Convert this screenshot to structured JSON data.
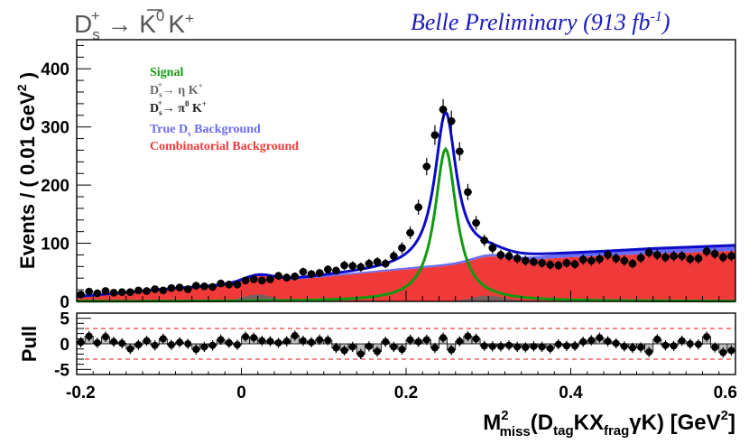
{
  "chart_data": [
    {
      "type": "line",
      "decay_title": {
        "parts": [
          "D",
          "s",
          "+",
          " → ",
          "K",
          "0",
          "K",
          "+"
        ]
      },
      "experiment_label": {
        "main": "Belle Preliminary (913 fb",
        "sup": "-1",
        "close": ")"
      },
      "ylabel": {
        "main": "Events / ( 0.01 GeV",
        "sup": "2",
        "close": " )"
      },
      "xlim": [
        -0.2,
        0.6
      ],
      "ylim": [
        0,
        450
      ],
      "x_ticks": [
        "-0.2",
        "0",
        "0.2",
        "0.4",
        "0.6"
      ],
      "y_ticks": [
        "0",
        "100",
        "200",
        "300",
        "400"
      ],
      "legend": [
        {
          "key": "signal",
          "label": "Signal",
          "color": "#119911"
        },
        {
          "key": "eta",
          "parts": [
            "D",
            "s",
            "+",
            "→ η K",
            "+"
          ],
          "color": "#666666"
        },
        {
          "key": "pi0",
          "parts": [
            "D",
            "s",
            "+",
            "→ π",
            "0",
            " K",
            "+"
          ],
          "color": "#222222"
        },
        {
          "key": "trueds",
          "label": "True D",
          "sub": "s",
          "rest": " Background",
          "color": "#6b6bf2"
        },
        {
          "key": "comb",
          "label": "Combinatorial Background",
          "color": "#f03a3a"
        }
      ],
      "components": {
        "total_color": "#0a0ac8",
        "signal": {
          "mean": 0.248,
          "sigma": 0.017,
          "peak": 262
        },
        "combinatorial": {
          "points": [
            [
              -0.2,
              8
            ],
            [
              -0.1,
              20
            ],
            [
              0.0,
              30
            ],
            [
              0.1,
              42
            ],
            [
              0.2,
              55
            ],
            [
              0.3,
              67
            ],
            [
              0.4,
              76
            ],
            [
              0.5,
              82
            ],
            [
              0.6,
              87
            ]
          ]
        },
        "true_ds": {
          "points": [
            [
              -0.2,
              0
            ],
            [
              0.0,
              0
            ],
            [
              0.1,
              1
            ],
            [
              0.2,
              2
            ],
            [
              0.3,
              3
            ],
            [
              0.4,
              5
            ],
            [
              0.5,
              8
            ],
            [
              0.6,
              9
            ]
          ]
        },
        "eta_peaks": [
          {
            "mean": 0.02,
            "sigma": 0.018,
            "height": 12
          },
          {
            "mean": 0.3,
            "sigma": 0.02,
            "height": 10
          }
        ]
      },
      "points": {
        "x": [
          -0.195,
          -0.185,
          -0.175,
          -0.165,
          -0.155,
          -0.145,
          -0.135,
          -0.125,
          -0.115,
          -0.105,
          -0.095,
          -0.085,
          -0.075,
          -0.065,
          -0.055,
          -0.045,
          -0.035,
          -0.025,
          -0.015,
          -0.005,
          0.005,
          0.015,
          0.025,
          0.035,
          0.045,
          0.055,
          0.065,
          0.075,
          0.085,
          0.095,
          0.105,
          0.115,
          0.125,
          0.135,
          0.145,
          0.155,
          0.165,
          0.175,
          0.185,
          0.195,
          0.205,
          0.215,
          0.225,
          0.235,
          0.245,
          0.255,
          0.265,
          0.275,
          0.285,
          0.295,
          0.305,
          0.315,
          0.325,
          0.335,
          0.345,
          0.355,
          0.365,
          0.375,
          0.385,
          0.395,
          0.405,
          0.415,
          0.425,
          0.435,
          0.445,
          0.455,
          0.465,
          0.475,
          0.485,
          0.495,
          0.505,
          0.515,
          0.525,
          0.535,
          0.545,
          0.555,
          0.565,
          0.575,
          0.585,
          0.595
        ],
        "y": [
          12,
          17,
          14,
          18,
          15,
          16,
          16,
          19,
          18,
          21,
          19,
          23,
          24,
          21,
          27,
          26,
          25,
          31,
          29,
          29,
          36,
          38,
          36,
          38,
          44,
          41,
          43,
          51,
          47,
          49,
          55,
          53,
          62,
          61,
          59,
          65,
          68,
          65,
          78,
          92,
          118,
          162,
          232,
          286,
          330,
          310,
          258,
          188,
          135,
          105,
          92,
          80,
          78,
          74,
          70,
          68,
          66,
          63,
          62,
          66,
          64,
          72,
          70,
          73,
          80,
          74,
          70,
          65,
          75,
          84,
          80,
          76,
          78,
          78,
          73,
          74,
          86,
          82,
          76,
          78
        ],
        "err": [
          4,
          4,
          4,
          4,
          4,
          4,
          4,
          5,
          5,
          5,
          5,
          5,
          5,
          5,
          5,
          5,
          5,
          6,
          6,
          6,
          6,
          6,
          6,
          6,
          7,
          7,
          7,
          7,
          7,
          7,
          7,
          7,
          8,
          8,
          8,
          8,
          8,
          8,
          9,
          10,
          11,
          13,
          15,
          17,
          18,
          18,
          16,
          14,
          12,
          10,
          10,
          9,
          9,
          9,
          9,
          8,
          8,
          8,
          8,
          8,
          8,
          9,
          9,
          9,
          9,
          9,
          9,
          8,
          9,
          9,
          9,
          9,
          9,
          9,
          9,
          9,
          9,
          9,
          9,
          9
        ]
      }
    },
    {
      "type": "bar",
      "ylabel": "Pull",
      "ylim": [
        -6,
        6
      ],
      "y_ticks": [
        "-5",
        "0",
        "5"
      ],
      "reference_lines": [
        3,
        -3
      ],
      "xlabel": {
        "m": "M",
        "sup": "2",
        "sub": "miss",
        "open": "(D",
        "tag": "tag",
        "kx": "KX",
        "frag": "frag",
        "gk": "γK) [GeV",
        "sup2": "2",
        "close": "]"
      },
      "pulls": [
        0.3,
        1.5,
        0.2,
        1.4,
        0.4,
        0.1,
        -1.0,
        -0.2,
        0.6,
        -0.3,
        1.0,
        -0.2,
        0.3,
        0.0,
        -1.1,
        -0.6,
        -0.3,
        0.8,
        0.2,
        -0.2,
        1.4,
        1.2,
        0.6,
        0.5,
        0.2,
        0.5,
        1.6,
        0.6,
        0.3,
        0.8,
        0.7,
        -0.8,
        -1.3,
        -0.6,
        -2.0,
        -0.5,
        -1.5,
        0.4,
        -0.6,
        -1.1,
        0.8,
        0.4,
        0.8,
        -0.8,
        1.2,
        -1.2,
        0.5,
        1.5,
        1.0,
        -0.4,
        -0.5,
        -0.5,
        -0.3,
        -0.6,
        -0.7,
        -0.5,
        -0.6,
        -0.9,
        -0.1,
        -0.4,
        -0.4,
        0.4,
        0.7,
        1.2,
        0.5,
        0.1,
        -0.5,
        -0.8,
        -0.7,
        -1.6,
        0.9,
        -0.3,
        -0.4,
        0.6,
        0.0,
        -0.1,
        1.4,
        -0.7,
        -1.7,
        -1.3
      ]
    }
  ]
}
